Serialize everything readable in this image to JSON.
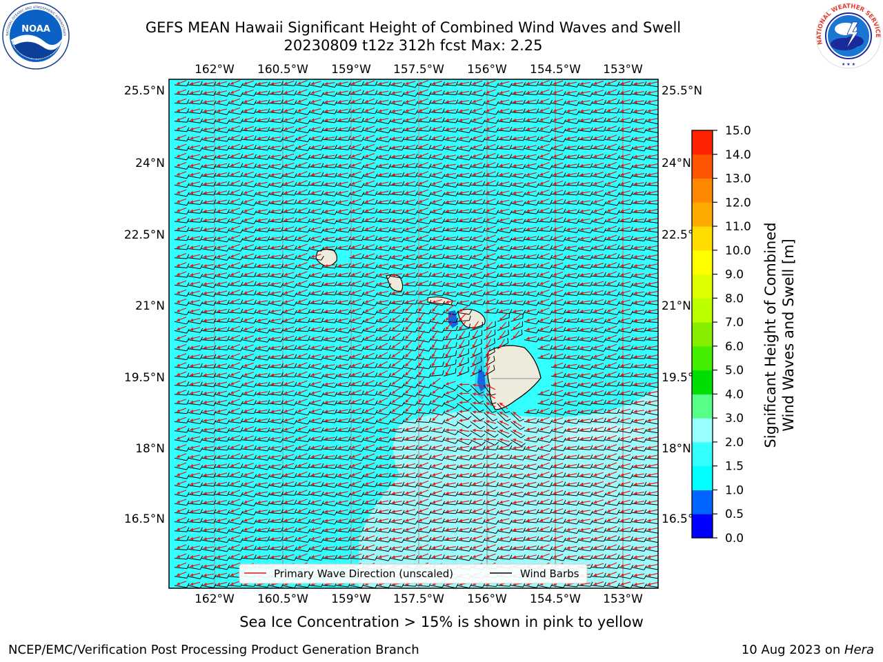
{
  "title": {
    "line1": "GEFS MEAN Hawaii Significant Height of Combined Wind Waves and Swell",
    "line2": "20230809 t12z 312h fcst   Max: 2.25"
  },
  "map": {
    "lon_labels": [
      "162°W",
      "160.5°W",
      "159°W",
      "157.5°W",
      "156°W",
      "154.5°W",
      "153°W"
    ],
    "lat_labels": [
      "25.5°N",
      "24°N",
      "22.5°N",
      "21°N",
      "19.5°N",
      "18°N",
      "16.5°N"
    ],
    "ocean_color": "#33ffff",
    "land_color": "#eeeadc",
    "islands": [
      "Kauai",
      "Oahu",
      "Maui",
      "Hawaii"
    ]
  },
  "legend": {
    "wave_label": "Primary Wave Direction (unscaled)",
    "barb_label": "Wind Barbs",
    "wave_color": "#ee1111",
    "barb_color": "#000000"
  },
  "colorbar": {
    "label_line1": "Significant Height of Combined",
    "label_line2": "Wind Waves and Swell [m]",
    "ticks": [
      "0.0",
      "0.5",
      "1.0",
      "1.5",
      "2.0",
      "3.0",
      "4.0",
      "5.0",
      "6.0",
      "7.0",
      "8.0",
      "9.0",
      "10.0",
      "11.0",
      "12.0",
      "13.0",
      "14.0",
      "15.0"
    ],
    "colors": [
      "#0000ff",
      "#0066ff",
      "#00ffff",
      "#33ffff",
      "#99ffff",
      "#55ff88",
      "#00dd00",
      "#44ee00",
      "#88ee00",
      "#bbff00",
      "#ddff00",
      "#ffff00",
      "#ffdd00",
      "#ffaa00",
      "#ff8800",
      "#ff5500",
      "#ff2200"
    ]
  },
  "caption": "Sea Ice Concentration > 15% is shown in pink to yellow",
  "footer": {
    "left": "NCEP/EMC/Verification Post Processing Product Generation Branch",
    "date": "10 Aug 2023 on ",
    "host": "Hera"
  },
  "logos": {
    "noaa_text": "NOAA",
    "noaa_ring": "NATIONAL OCEANIC AND ATMOSPHERIC ADMINISTRATION",
    "noaa_ring2": "U.S. DEPARTMENT OF COMMERCE",
    "nws_ring": "NATIONAL WEATHER SERVICE"
  }
}
